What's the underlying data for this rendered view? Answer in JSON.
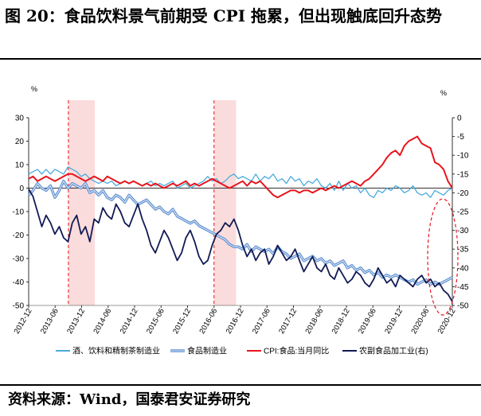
{
  "header": {
    "title": "图 20：食品饮料景气前期受 CPI 拖累，但出现触底回升态势"
  },
  "footer": {
    "source": "资料来源：Wind，国泰君安证券研究"
  },
  "chart_data": {
    "type": "line",
    "title": "",
    "left_unit": "%",
    "right_unit": "%",
    "ylim_left": [
      -50,
      30
    ],
    "yticks_left": [
      30,
      20,
      10,
      0,
      -10,
      -20,
      -30,
      -40,
      -50
    ],
    "ylim_right": [
      -50,
      0
    ],
    "yticks_right": [
      0,
      -5,
      -10,
      -15,
      -20,
      -25,
      -30,
      -35,
      -40,
      -45,
      -50
    ],
    "x_range": [
      "2012-12",
      "2020-12"
    ],
    "x_ticks": [
      "2012-12",
      "2013-06",
      "2013-12",
      "2014-06",
      "2014-12",
      "2015-06",
      "2015-12",
      "2016-06",
      "2016-12",
      "2017-06",
      "2017-12",
      "2018-06",
      "2018-12",
      "2019-06",
      "2019-12",
      "2020-06",
      "2020-12"
    ],
    "shaded_periods": [
      {
        "start": "2013-09",
        "end": "2014-03"
      },
      {
        "start": "2016-06",
        "end": "2016-11"
      }
    ],
    "zero_line": true,
    "legend_position": "bottom",
    "annotation": "dashed red ellipse around 2020-06 to 2020-12",
    "series": [
      {
        "name": "酒、饮料和精制茶制造业",
        "axis": "left",
        "color": "#4aabdb",
        "values": [
          6,
          7,
          8,
          6,
          8,
          6,
          8,
          7,
          6,
          9,
          8,
          7,
          5,
          6,
          4,
          3,
          2,
          3,
          2,
          3,
          1,
          2,
          3,
          2,
          3,
          2,
          1,
          2,
          3,
          1,
          2,
          1,
          2,
          3,
          0,
          1,
          2,
          0,
          1,
          2,
          3,
          5,
          3,
          4,
          2,
          3,
          5,
          6,
          4,
          5,
          4,
          3,
          6,
          3,
          5,
          4,
          6,
          3,
          4,
          2,
          5,
          3,
          4,
          1,
          3,
          2,
          4,
          1,
          0,
          2,
          -1,
          3,
          -1,
          2,
          0,
          1,
          -2,
          0,
          -3,
          -4,
          -1,
          -2,
          0,
          -1,
          1,
          0,
          -2,
          -1,
          1,
          -2,
          -3,
          -2,
          -4,
          -1,
          -2,
          -3,
          -1,
          0
        ]
      },
      {
        "name": "食品制造业",
        "axis": "left",
        "color": "#5e8fd0",
        "values": [
          -3,
          -1,
          2,
          0,
          -1,
          1,
          -4,
          -1,
          3,
          0,
          2,
          1,
          0,
          2,
          -2,
          -1,
          -3,
          -1,
          -4,
          -5,
          -3,
          -4,
          -6,
          -3,
          -5,
          -7,
          -6,
          -5,
          -7,
          -9,
          -8,
          -10,
          -11,
          -9,
          -12,
          -13,
          -14,
          -15,
          -14,
          -16,
          -17,
          -18,
          -19,
          -20,
          -21,
          -22,
          -24,
          -25,
          -25,
          -26,
          -24,
          -27,
          -25,
          -26,
          -27,
          -26,
          -28,
          -25,
          -27,
          -28,
          -30,
          -29,
          -28,
          -31,
          -30,
          -29,
          -31,
          -30,
          -32,
          -31,
          -33,
          -32,
          -31,
          -34,
          -33,
          -35,
          -34,
          -36,
          -35,
          -37,
          -36,
          -38,
          -37,
          -38,
          -37,
          -38,
          -39,
          -40,
          -39,
          -41,
          -40,
          -39,
          -41,
          -40,
          -41,
          -40,
          -39,
          -38
        ]
      },
      {
        "name": "CPI:食品:当月同比",
        "axis": "left",
        "color": "#e8141c",
        "values": [
          4,
          5,
          3,
          4,
          5,
          4,
          3,
          4,
          5,
          6,
          6,
          5,
          4,
          3,
          4,
          5,
          4,
          3,
          5,
          4,
          3,
          2,
          3,
          2,
          3,
          2,
          1,
          2,
          1,
          2,
          1,
          0,
          1,
          2,
          1,
          2,
          3,
          1,
          2,
          1,
          2,
          3,
          4,
          3,
          2,
          1,
          0,
          1,
          2,
          3,
          1,
          3,
          2,
          3,
          1,
          -1,
          -3,
          -4,
          -3,
          -2,
          -1,
          -1,
          -2,
          -1,
          -1,
          -2,
          -1,
          0,
          -1,
          0,
          1,
          0,
          1,
          2,
          3,
          2,
          1,
          3,
          4,
          6,
          8,
          10,
          13,
          15,
          16,
          14,
          18,
          20,
          21,
          22,
          19,
          18,
          17,
          11,
          10,
          8,
          3,
          0
        ]
      },
      {
        "name": "农副食品加工业(右)",
        "axis": "right",
        "color": "#111a55",
        "values": [
          -19,
          -21,
          -25,
          -29,
          -26,
          -28,
          -31,
          -29,
          -32,
          -33,
          -28,
          -26,
          -31,
          -29,
          -33,
          -27,
          -28,
          -24,
          -26,
          -27,
          -23,
          -25,
          -28,
          -29,
          -26,
          -23,
          -27,
          -30,
          -34,
          -36,
          -33,
          -30,
          -32,
          -35,
          -38,
          -36,
          -32,
          -30,
          -33,
          -37,
          -39,
          -38,
          -34,
          -31,
          -30,
          -28,
          -29,
          -27,
          -30,
          -34,
          -37,
          -35,
          -38,
          -36,
          -35,
          -39,
          -37,
          -34,
          -36,
          -38,
          -37,
          -35,
          -38,
          -41,
          -39,
          -37,
          -40,
          -41,
          -39,
          -42,
          -43,
          -40,
          -42,
          -44,
          -43,
          -41,
          -42,
          -44,
          -45,
          -43,
          -40,
          -42,
          -44,
          -43,
          -45,
          -42,
          -43,
          -44,
          -45,
          -43,
          -42,
          -44,
          -43,
          -45,
          -44,
          -46,
          -47,
          -49
        ]
      }
    ]
  }
}
